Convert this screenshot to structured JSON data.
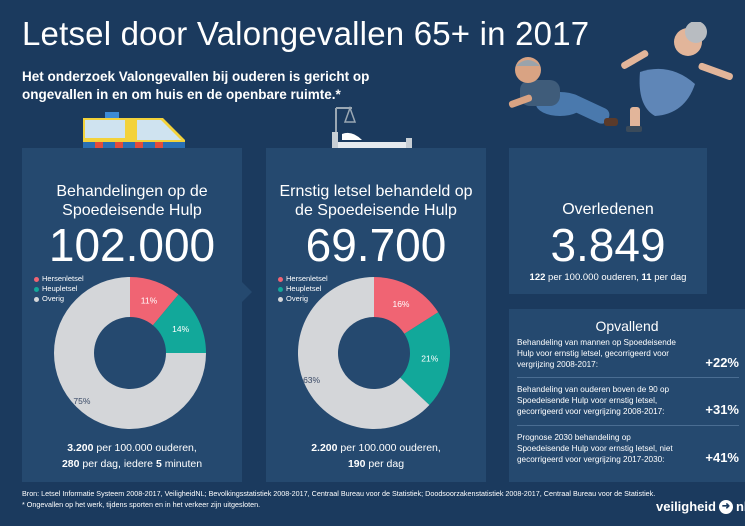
{
  "header": {
    "title": "Letsel door Valongevallen 65+ in 2017",
    "subtitle": "Het onderzoek Valongevallen bij ouderen is gericht op ongevallen in en om huis en de openbare ruimte.*"
  },
  "legend_labels": [
    "Hersenletsel",
    "Heupletsel",
    "Overig"
  ],
  "colors": {
    "hersenletsel": "#f06473",
    "heupletsel": "#12a89a",
    "overig": "#d4d6d9",
    "background": "#1b3a5e",
    "panel": "#25496f"
  },
  "panel_seh": {
    "title_line1": "Behandelingen op de",
    "title_line2": "Spoedeisende Hulp",
    "number": "102.000",
    "foot_line1_bold": "3.200",
    "foot_line1_rest": " per 100.000 ouderen,",
    "foot_line2_bold1": "280",
    "foot_line2_mid": " per dag, iedere ",
    "foot_line2_bold2": "5",
    "foot_line2_rest": " minuten"
  },
  "panel_ernstig": {
    "title_line1": "Ernstig letsel behandeld op",
    "title_line2": "de Spoedeisende Hulp",
    "number": "69.700",
    "foot_line1_bold": "2.200",
    "foot_line1_rest": " per 100.000 ouderen,",
    "foot_line2_bold": "190",
    "foot_line2_rest": " per dag"
  },
  "panel_overleden": {
    "title": "Overledenen",
    "number": "3.849",
    "foot_bold1": "122",
    "foot_mid": " per 100.000 ouderen, ",
    "foot_bold2": "11",
    "foot_rest": " per dag"
  },
  "opvallend": {
    "title": "Opvallend",
    "items": [
      {
        "text": "Behandeling van mannen op Spoedeisende Hulp voor ernstig letsel, gecorrigeerd voor vergrijzing 2008-2017:",
        "value": "+22%"
      },
      {
        "text": "Behandeling van ouderen boven de 90 op Spoedeisende Hulp voor ernstig letsel, gecorrigeerd voor vergrijzing 2008-2017:",
        "value": "+31%"
      },
      {
        "text": "Prognose 2030 behandeling op Spoedeisende Hulp voor ernstig letsel, niet gecorrigeerd voor vergrijzing 2017-2030:",
        "value": "+41%"
      }
    ]
  },
  "chart_data": [
    {
      "type": "pie",
      "categories": [
        "Hersenletsel",
        "Heupletsel",
        "Overig"
      ],
      "values": [
        11,
        14,
        75
      ],
      "labels": [
        "11%",
        "14%",
        "75%"
      ]
    },
    {
      "type": "pie",
      "categories": [
        "Hersenletsel",
        "Heupletsel",
        "Overig"
      ],
      "values": [
        16,
        21,
        63
      ],
      "labels": [
        "16%",
        "21%",
        "63%"
      ]
    }
  ],
  "footer": {
    "sources": "Bron: Letsel Informatie Systeem 2008-2017, VeiligheidNL; Bevolkingsstatistiek 2008-2017, Centraal Bureau voor de Statistiek; Doodsoorzakenstatistiek 2008-2017, Centraal Bureau voor de Statistiek.",
    "note": "* Ongevallen op het werk, tijdens sporten en in het verkeer zijn uitgesloten.",
    "logo_text": "veiligheid",
    "logo_suffix": "nl"
  }
}
